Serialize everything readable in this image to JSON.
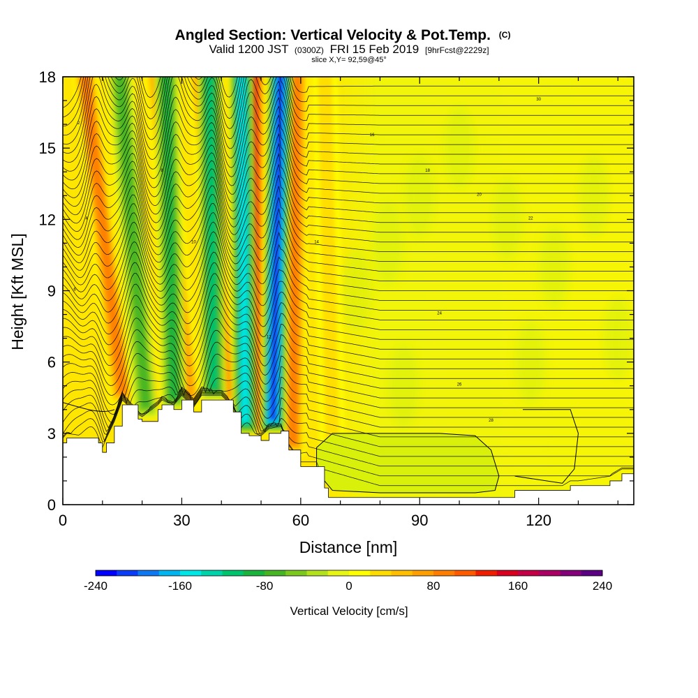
{
  "chart_data": {
    "type": "heatmap",
    "title": "Angled Section: Vertical Velocity & Pot.Temp.",
    "title_unit": "(C)",
    "subtitle": {
      "prefix": "Valid 1200 JST",
      "utc": "(0300Z)",
      "date": "FRI 15 Feb 2019",
      "forecast": "[9hrFcst@2229z]"
    },
    "slice_label": "slice X,Y= 92,59@45°",
    "xlabel": "Distance [nm]",
    "ylabel": "Height [Kft MSL]",
    "xlim": [
      0,
      144
    ],
    "ylim": [
      0,
      18
    ],
    "x_ticks": [
      0,
      30,
      60,
      90,
      120
    ],
    "x_tick_labels": [
      "0",
      "30",
      "60",
      "90",
      "120"
    ],
    "y_ticks": [
      0,
      3,
      6,
      9,
      12,
      15,
      18
    ],
    "y_tick_labels": [
      "0",
      "3",
      "6",
      "9",
      "12",
      "15",
      "18"
    ],
    "grid": false,
    "colorbar": {
      "title": "Vertical Velocity [cm/s]",
      "min": -240,
      "max": 240,
      "step": 20,
      "tick_values": [
        -240,
        -160,
        -80,
        0,
        80,
        160,
        240
      ],
      "tick_labels": [
        "-240",
        "-160",
        "-80",
        "0",
        "80",
        "160",
        "240"
      ],
      "colors": [
        "#0000ff",
        "#0a3cf5",
        "#0f78f0",
        "#00b4f0",
        "#00e6e6",
        "#00d2aa",
        "#00c36e",
        "#1ab43c",
        "#46b423",
        "#7dc81e",
        "#b4e11e",
        "#e6f514",
        "#ffff00",
        "#ffdc00",
        "#ffbe00",
        "#ffa000",
        "#ff7d00",
        "#ff5a00",
        "#f01e00",
        "#d7001e",
        "#c30046",
        "#aa0064",
        "#820078",
        "#5a0082"
      ]
    },
    "updraft_bands": [
      {
        "x_bottom": 15,
        "x_top": 5,
        "peak": 100
      },
      {
        "x_bottom": 22,
        "x_top": 13,
        "peak": 80
      },
      {
        "x_bottom": 32,
        "x_top": 23,
        "peak": 90
      },
      {
        "x_bottom": 42,
        "x_top": 34,
        "peak": 80
      },
      {
        "x_bottom": 48,
        "x_top": 48,
        "peak": 170
      },
      {
        "x_bottom": 58,
        "x_top": 59,
        "peak": 110
      },
      {
        "x_bottom": 68,
        "x_top": 66,
        "peak": 40
      }
    ],
    "downdraft_bands": [
      {
        "x_bottom": 21,
        "x_top": 14,
        "peak": -90
      },
      {
        "x_bottom": 28,
        "x_top": 26,
        "peak": -100
      },
      {
        "x_bottom": 38,
        "x_top": 37,
        "peak": -120
      },
      {
        "x_bottom": 46,
        "x_top": 45,
        "peak": -160
      },
      {
        "x_bottom": 53,
        "x_top": 55,
        "peak": -230
      }
    ],
    "terrain": [
      [
        0,
        2.6
      ],
      [
        1,
        2.8
      ],
      [
        9,
        2.6
      ],
      [
        10,
        2.2
      ],
      [
        11,
        2.6
      ],
      [
        13,
        3.3
      ],
      [
        15,
        4.2
      ],
      [
        19,
        3.6
      ],
      [
        20,
        3.5
      ],
      [
        24,
        4.0
      ],
      [
        25,
        4.2
      ],
      [
        28,
        4.0
      ],
      [
        30,
        4.4
      ],
      [
        33,
        3.9
      ],
      [
        35,
        4.4
      ],
      [
        40,
        4.4
      ],
      [
        43,
        3.9
      ],
      [
        45,
        3.0
      ],
      [
        47,
        2.9
      ],
      [
        50,
        2.7
      ],
      [
        52,
        3.0
      ],
      [
        55,
        3.1
      ],
      [
        57,
        2.3
      ],
      [
        60,
        1.6
      ],
      [
        64,
        1.6
      ],
      [
        66,
        0.7
      ],
      [
        67,
        0.3
      ],
      [
        80,
        0.3
      ],
      [
        90,
        0.3
      ],
      [
        102,
        0.3
      ],
      [
        113,
        0.3
      ],
      [
        114,
        0.6
      ],
      [
        126,
        0.6
      ],
      [
        128,
        0.8
      ],
      [
        130,
        0.8
      ],
      [
        138,
        1.0
      ],
      [
        141,
        1.3
      ],
      [
        144,
        1.3
      ]
    ],
    "theta_contours": {
      "count": 42,
      "west_base": 2.0,
      "west_spacing": 0.38,
      "east_base": 0.8,
      "east_spacing": 0.41,
      "wave_amplitude": 1.6,
      "label_values": [
        "2",
        "4",
        "6",
        "8",
        "10",
        "12",
        "14",
        "16",
        "18",
        "20",
        "22",
        "24",
        "26",
        "28",
        "30"
      ]
    }
  }
}
